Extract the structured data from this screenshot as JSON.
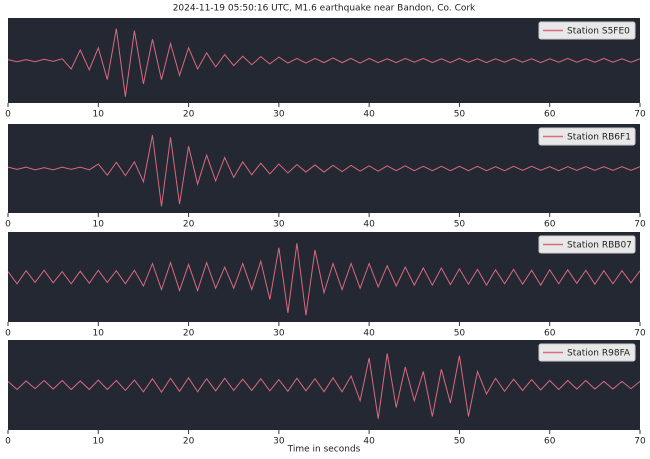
{
  "chart_data": [
    {
      "type": "line",
      "title": "2024-11-19 05:50:16 UTC, M1.6 earthquake near Bandon, Co. Cork",
      "legend": "upper right",
      "xlim": [
        0,
        70
      ],
      "xticks": [
        0,
        10,
        20,
        30,
        40,
        50,
        60,
        70
      ],
      "ylim": [
        -1,
        1
      ],
      "x": [
        0,
        1,
        2,
        3,
        4,
        5,
        6,
        7,
        8,
        9,
        10,
        11,
        12,
        13,
        14,
        15,
        16,
        17,
        18,
        19,
        20,
        21,
        22,
        23,
        24,
        25,
        26,
        27,
        28,
        29,
        30,
        31,
        32,
        33,
        34,
        35,
        36,
        37,
        38,
        39,
        40,
        41,
        42,
        43,
        44,
        45,
        46,
        47,
        48,
        49,
        50,
        51,
        52,
        53,
        54,
        55,
        56,
        57,
        58,
        59,
        60,
        61,
        62,
        63,
        64,
        65,
        66,
        67,
        68,
        69,
        70
      ],
      "series": [
        {
          "name": "Station S5FE0",
          "color": "#d9697f",
          "values": [
            0.02,
            -0.03,
            0.02,
            -0.03,
            0.03,
            -0.02,
            0.04,
            -0.2,
            0.25,
            -0.22,
            0.3,
            -0.45,
            0.75,
            -0.85,
            0.7,
            -0.55,
            0.5,
            -0.45,
            0.4,
            -0.35,
            0.3,
            -0.2,
            0.18,
            -0.15,
            0.14,
            -0.12,
            0.1,
            -0.1,
            0.09,
            -0.08,
            0.08,
            -0.06,
            0.05,
            -0.06,
            0.05,
            -0.05,
            0.06,
            -0.05,
            0.05,
            -0.06,
            0.05,
            -0.05,
            0.04,
            -0.05,
            0.05,
            -0.04,
            0.05,
            -0.05,
            0.04,
            -0.05,
            0.05,
            -0.04,
            0.04,
            -0.05,
            0.04,
            -0.04,
            0.05,
            -0.04,
            0.04,
            -0.05,
            0.04,
            -0.04,
            0.05,
            -0.04,
            0.04,
            -0.04,
            0.05,
            -0.04,
            0.04,
            -0.04,
            0.04
          ]
        }
      ]
    },
    {
      "type": "line",
      "legend": "upper right",
      "xlim": [
        0,
        70
      ],
      "xticks": [
        0,
        10,
        20,
        30,
        40,
        50,
        60,
        70
      ],
      "ylim": [
        -1,
        1
      ],
      "x": [
        0,
        1,
        2,
        3,
        4,
        5,
        6,
        7,
        8,
        9,
        10,
        11,
        12,
        13,
        14,
        15,
        16,
        17,
        18,
        19,
        20,
        21,
        22,
        23,
        24,
        25,
        26,
        27,
        28,
        29,
        30,
        31,
        32,
        33,
        34,
        35,
        36,
        37,
        38,
        39,
        40,
        41,
        42,
        43,
        44,
        45,
        46,
        47,
        48,
        49,
        50,
        51,
        52,
        53,
        54,
        55,
        56,
        57,
        58,
        59,
        60,
        61,
        62,
        63,
        64,
        65,
        66,
        67,
        68,
        69,
        70
      ],
      "series": [
        {
          "name": "Station RB6F1",
          "color": "#d9697f",
          "values": [
            0.03,
            -0.02,
            0.03,
            -0.03,
            0.02,
            -0.03,
            0.03,
            -0.02,
            0.03,
            -0.03,
            0.1,
            -0.15,
            0.14,
            -0.16,
            0.15,
            -0.3,
            0.75,
            -0.85,
            0.7,
            -0.8,
            0.5,
            -0.35,
            0.3,
            -0.28,
            0.25,
            -0.2,
            0.15,
            -0.14,
            0.12,
            -0.12,
            0.1,
            -0.1,
            0.09,
            -0.08,
            0.08,
            -0.08,
            0.07,
            -0.07,
            0.07,
            -0.06,
            0.06,
            -0.06,
            0.06,
            -0.05,
            0.06,
            -0.05,
            0.05,
            -0.05,
            0.05,
            -0.05,
            0.05,
            -0.05,
            0.05,
            -0.05,
            0.04,
            -0.05,
            0.05,
            -0.04,
            0.05,
            -0.04,
            0.04,
            -0.05,
            0.04,
            -0.04,
            0.04,
            -0.04,
            0.04,
            -0.04,
            0.04,
            -0.04,
            0.04
          ]
        }
      ]
    },
    {
      "type": "line",
      "legend": "upper right",
      "xlim": [
        0,
        70
      ],
      "xticks": [
        0,
        10,
        20,
        30,
        40,
        50,
        60,
        70
      ],
      "ylim": [
        -1,
        1
      ],
      "x": [
        0,
        1,
        2,
        3,
        4,
        5,
        6,
        7,
        8,
        9,
        10,
        11,
        12,
        13,
        14,
        15,
        16,
        17,
        18,
        19,
        20,
        21,
        22,
        23,
        24,
        25,
        26,
        27,
        28,
        29,
        30,
        31,
        32,
        33,
        34,
        35,
        36,
        37,
        38,
        39,
        40,
        41,
        42,
        43,
        44,
        45,
        46,
        47,
        48,
        49,
        50,
        51,
        52,
        53,
        54,
        55,
        56,
        57,
        58,
        59,
        60,
        61,
        62,
        63,
        64,
        65,
        66,
        67,
        68,
        69,
        70
      ],
      "series": [
        {
          "name": "Station RBB07",
          "color": "#d9697f",
          "values": [
            0.12,
            -0.15,
            0.14,
            -0.12,
            0.15,
            -0.13,
            0.12,
            -0.15,
            0.13,
            -0.14,
            0.15,
            -0.12,
            0.14,
            -0.15,
            0.15,
            -0.2,
            0.3,
            -0.28,
            0.32,
            -0.3,
            0.28,
            -0.3,
            0.32,
            -0.25,
            0.22,
            -0.25,
            0.3,
            -0.28,
            0.35,
            -0.5,
            0.65,
            -0.8,
            0.75,
            -0.85,
            0.6,
            -0.35,
            0.3,
            -0.28,
            0.3,
            -0.25,
            0.3,
            -0.22,
            0.25,
            -0.2,
            0.22,
            -0.18,
            0.2,
            -0.18,
            0.2,
            -0.17,
            0.18,
            -0.16,
            0.17,
            -0.18,
            0.16,
            -0.15,
            0.17,
            -0.16,
            0.15,
            -0.18,
            0.16,
            -0.15,
            0.16,
            -0.14,
            0.15,
            -0.16,
            0.14,
            -0.15,
            0.14,
            -0.13,
            0.14
          ]
        }
      ]
    },
    {
      "type": "line",
      "legend": "upper right",
      "xlabel": "Time in seconds",
      "xlim": [
        0,
        70
      ],
      "xticks": [
        0,
        10,
        20,
        30,
        40,
        50,
        60,
        70
      ],
      "ylim": [
        -1,
        1
      ],
      "x": [
        0,
        1,
        2,
        3,
        4,
        5,
        6,
        7,
        8,
        9,
        10,
        11,
        12,
        13,
        14,
        15,
        16,
        17,
        18,
        19,
        20,
        21,
        22,
        23,
        24,
        25,
        26,
        27,
        28,
        29,
        30,
        31,
        32,
        33,
        34,
        35,
        36,
        37,
        38,
        39,
        40,
        41,
        42,
        43,
        44,
        45,
        46,
        47,
        48,
        49,
        50,
        51,
        52,
        53,
        54,
        55,
        56,
        57,
        58,
        59,
        60,
        61,
        62,
        63,
        64,
        65,
        66,
        67,
        68,
        69,
        70
      ],
      "series": [
        {
          "name": "Station R98FA",
          "color": "#d9697f",
          "values": [
            0.08,
            -0.1,
            0.09,
            -0.08,
            0.1,
            -0.09,
            0.1,
            -0.1,
            0.09,
            -0.1,
            0.11,
            -0.1,
            0.1,
            -0.12,
            0.11,
            -0.15,
            0.14,
            -0.16,
            0.15,
            -0.14,
            0.16,
            -0.15,
            0.14,
            -0.13,
            0.15,
            -0.12,
            0.13,
            -0.12,
            0.14,
            -0.13,
            0.12,
            -0.14,
            0.15,
            -0.13,
            0.14,
            -0.15,
            0.16,
            -0.15,
            0.2,
            -0.35,
            0.6,
            -0.75,
            0.7,
            -0.5,
            0.4,
            -0.35,
            0.3,
            -0.7,
            0.35,
            -0.4,
            0.65,
            -0.7,
            0.3,
            -0.2,
            0.15,
            -0.14,
            0.13,
            -0.12,
            0.12,
            -0.11,
            0.1,
            -0.1,
            0.1,
            -0.09,
            0.1,
            -0.09,
            0.08,
            -0.09,
            0.08,
            -0.08,
            0.08
          ]
        }
      ]
    }
  ]
}
